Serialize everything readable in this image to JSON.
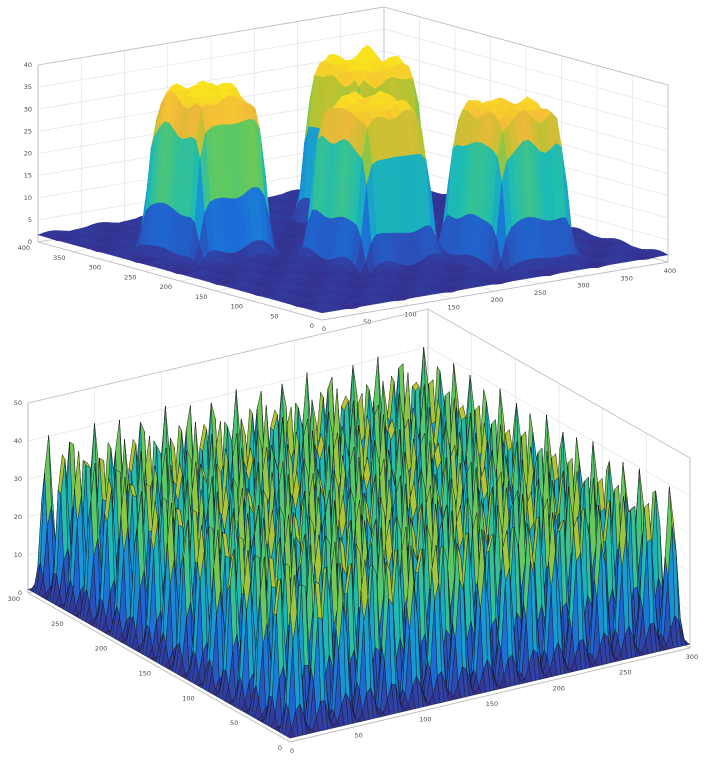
{
  "chart_data": [
    {
      "type": "surface",
      "description_role": "top-plot",
      "x_ticks": [
        "0",
        "50",
        "100",
        "150",
        "200",
        "250",
        "300",
        "350",
        "400"
      ],
      "y_ticks": [
        "0",
        "50",
        "100",
        "150",
        "200",
        "250",
        "300",
        "350",
        "400"
      ],
      "z_ticks": [
        "0",
        "5",
        "10",
        "15",
        "20",
        "25",
        "30",
        "35",
        "40"
      ],
      "xlim": [
        0,
        400
      ],
      "ylim": [
        0,
        400
      ],
      "zlim": [
        0,
        40
      ],
      "grid": true,
      "colormap": "parula",
      "background_level": 2,
      "plateaus": [
        {
          "x_range": [
            40,
            120
          ],
          "y_range": [
            220,
            300
          ],
          "height": 38
        },
        {
          "x_range": [
            230,
            310
          ],
          "y_range": [
            230,
            310
          ],
          "height": 38
        },
        {
          "x_range": [
            140,
            220
          ],
          "y_range": [
            110,
            190
          ],
          "height": 37
        },
        {
          "x_range": [
            240,
            320
          ],
          "y_range": [
            40,
            120
          ],
          "height": 36
        }
      ]
    },
    {
      "type": "surface",
      "description_role": "bottom-plot",
      "x_ticks": [
        "0",
        "50",
        "100",
        "150",
        "200",
        "250",
        "300"
      ],
      "y_ticks": [
        "0",
        "50",
        "100",
        "150",
        "200",
        "250",
        "300"
      ],
      "z_ticks": [
        "0",
        "10",
        "20",
        "30",
        "40",
        "50"
      ],
      "xlim": [
        0,
        300
      ],
      "ylim": [
        0,
        300
      ],
      "zlim": [
        0,
        50
      ],
      "grid": true,
      "colormap": "parula",
      "edge_color": "#000000",
      "peak_grid": 17,
      "peak_height": 42
    }
  ],
  "colors": {
    "parula": [
      "#352a87",
      "#2d4bb2",
      "#1c6cd7",
      "#1898d4",
      "#1dbcb3",
      "#5ec962",
      "#b3c431",
      "#f3b83b",
      "#f9e21e"
    ],
    "axis": "#bdbdbd",
    "grid": "#e3e3e3",
    "tick_text": "#4a4a4a"
  }
}
